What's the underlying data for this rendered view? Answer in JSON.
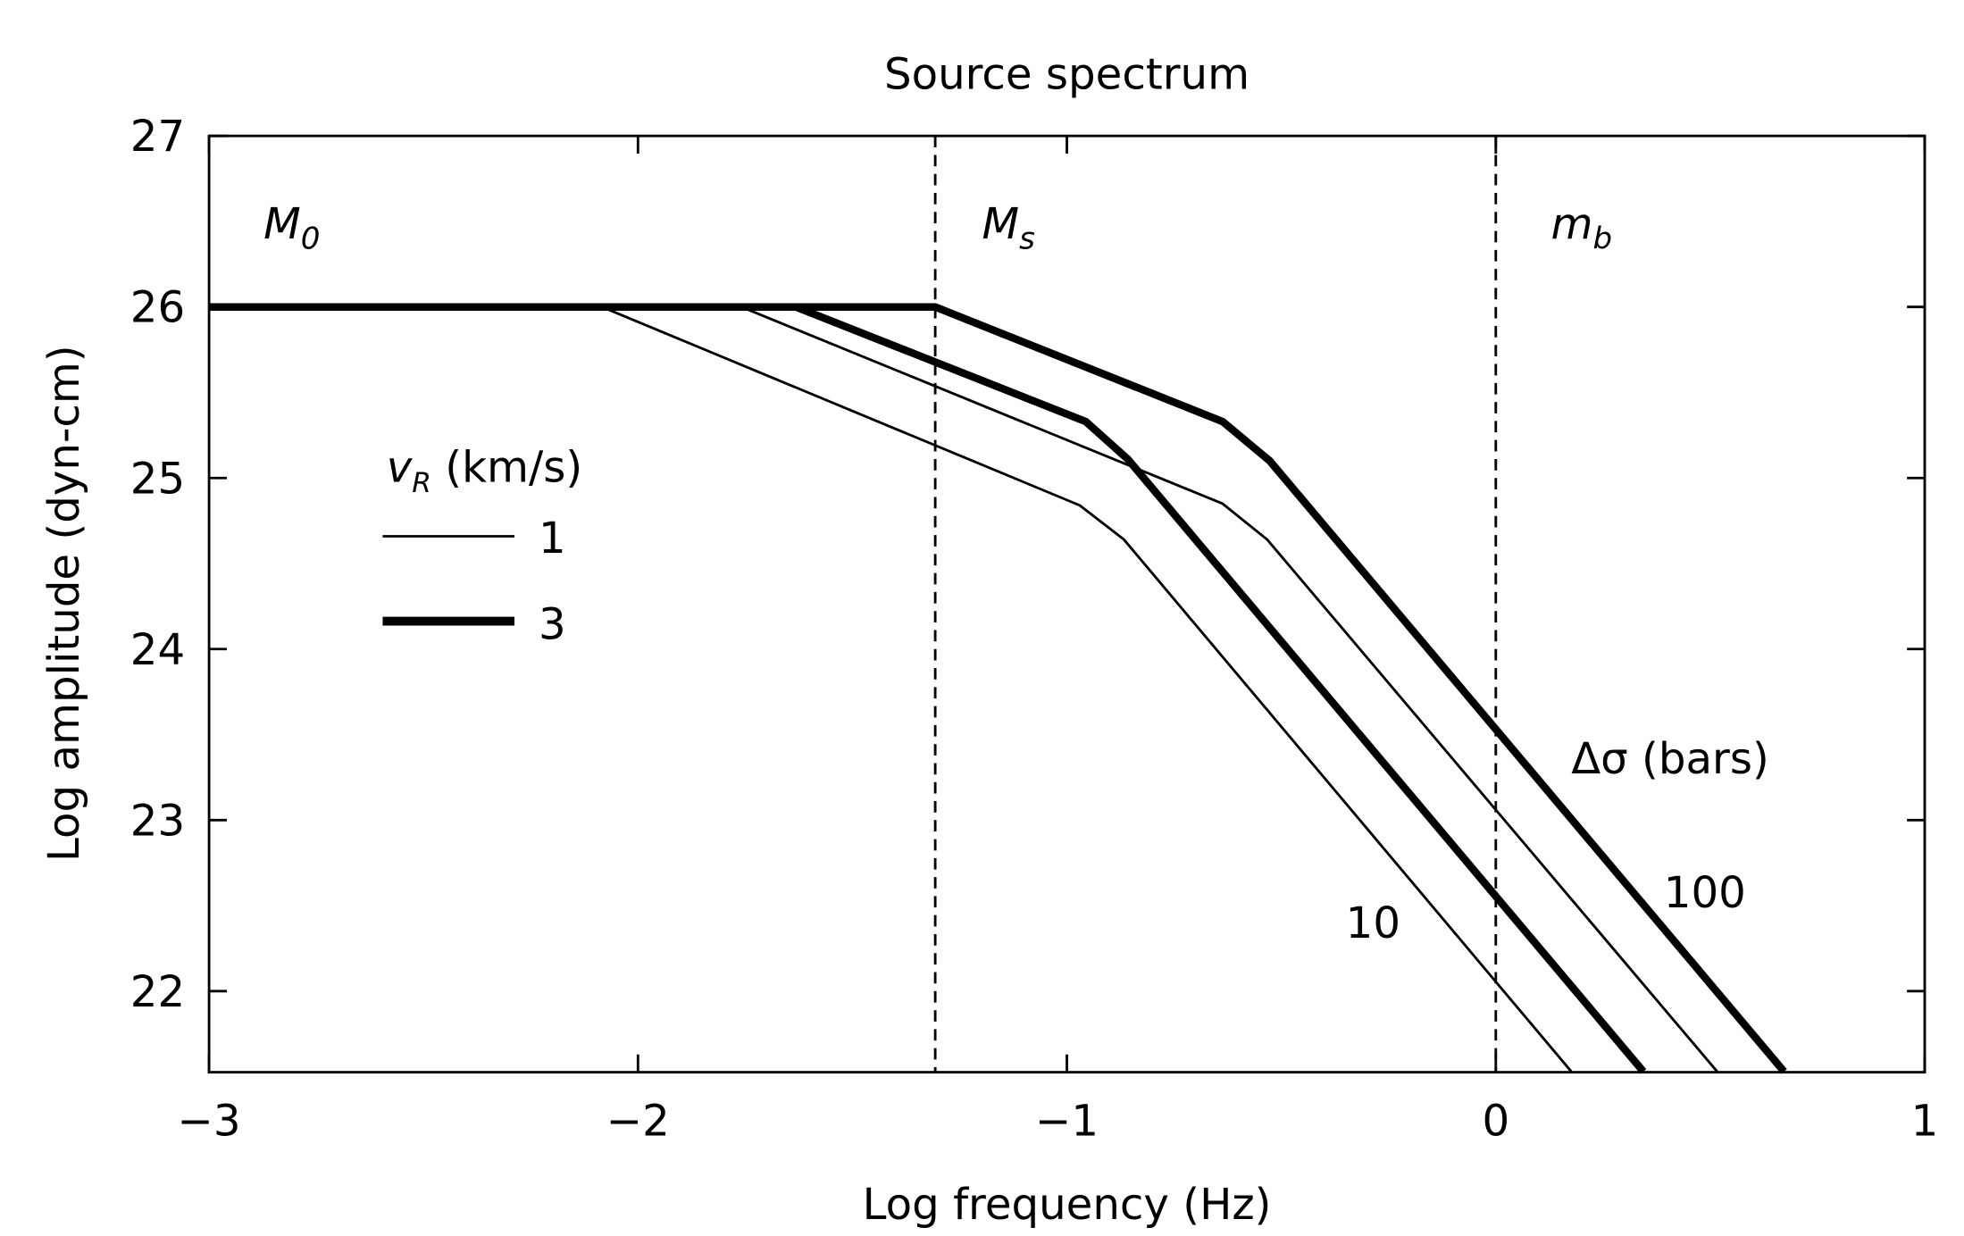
{
  "chart_data": {
    "type": "line",
    "title": "Source spectrum",
    "xlabel": "Log frequency (Hz)",
    "ylabel": "Log amplitude (dyn-cm)",
    "xlim": [
      -3,
      1
    ],
    "ylim": [
      21.53,
      27
    ],
    "xticks": [
      -3,
      -2,
      -1,
      0,
      1
    ],
    "xtick_labels": [
      "−3",
      "−2",
      "−1",
      "0",
      "1"
    ],
    "yticks": [
      22,
      23,
      24,
      25,
      26,
      27
    ],
    "ytick_labels": [
      "22",
      "23",
      "24",
      "25",
      "26",
      "27"
    ],
    "grid": false,
    "vertical_dashed_lines": [
      -1.307,
      0
    ],
    "region_labels": [
      {
        "base": "M",
        "sub": "0"
      },
      {
        "base": "M",
        "sub": "s"
      },
      {
        "base": "m",
        "sub": "b"
      }
    ],
    "legend": {
      "title_base": "v",
      "title_sub": "R",
      "title_rest": " (km/s)",
      "entries": [
        {
          "label": "1",
          "style": "thin"
        },
        {
          "label": "3",
          "style": "thick"
        }
      ],
      "placement": "left"
    },
    "stress_drop_label": "Δσ (bars)",
    "stress_drop_values": [
      "10",
      "100"
    ],
    "series": [
      {
        "name": "vR=1, 10 bars",
        "style": "thin",
        "x": [
          -3,
          -2.084,
          -0.97,
          -0.867,
          0.176
        ],
        "y": [
          26,
          26,
          24.84,
          24.64,
          21.53
        ]
      },
      {
        "name": "vR=1, 100 bars",
        "style": "thin",
        "x": [
          -3,
          -1.759,
          -0.637,
          -0.533,
          0.516
        ],
        "y": [
          26,
          26,
          24.85,
          24.64,
          21.53
        ]
      },
      {
        "name": "vR=3, 10 bars",
        "style": "thick",
        "x": [
          -3,
          -1.632,
          -0.956,
          -0.858,
          0.344
        ],
        "y": [
          26,
          26,
          25.33,
          25.11,
          21.53
        ]
      },
      {
        "name": "vR=3, 100 bars",
        "style": "thick",
        "x": [
          -3,
          -1.307,
          -0.637,
          -0.527,
          0.672
        ],
        "y": [
          26,
          26,
          25.33,
          25.1,
          21.53
        ]
      }
    ]
  }
}
